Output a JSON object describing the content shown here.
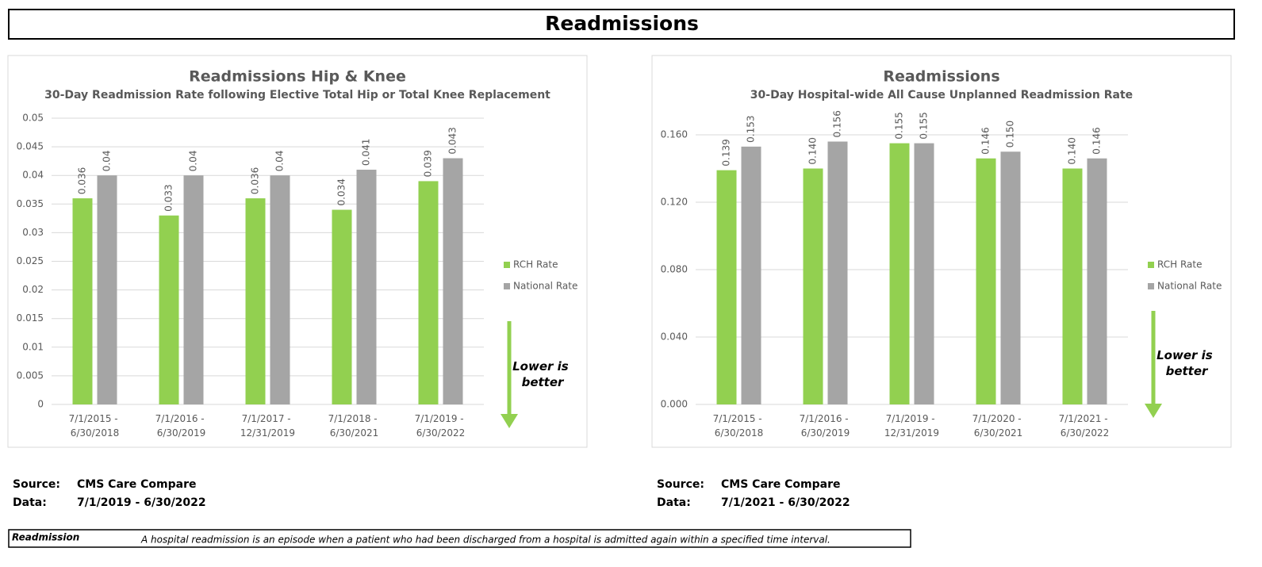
{
  "header": {
    "title": "Readmissions"
  },
  "chart_data": [
    {
      "type": "bar",
      "title": "Readmissions Hip & Knee",
      "subtitle": "30-Day Readmission Rate following Elective Total Hip or Total Knee Replacement",
      "categories": [
        "7/1/2015 - 6/30/2018",
        "7/1/2016 - 6/30/2019",
        "7/1/2017 - 12/31/2019",
        "7/1/2018 - 6/30/2021",
        "7/1/2019 - 6/30/2022"
      ],
      "series": [
        {
          "name": "RCH Rate",
          "color": "#92d050",
          "values": [
            0.036,
            0.033,
            0.036,
            0.034,
            0.039
          ]
        },
        {
          "name": "National Rate",
          "color": "#a5a5a5",
          "values": [
            0.04,
            0.04,
            0.04,
            0.041,
            0.043
          ]
        }
      ],
      "ylim": [
        0,
        0.05
      ],
      "yticks": [
        0,
        0.005,
        0.01,
        0.015,
        0.02,
        0.025,
        0.03,
        0.035,
        0.04,
        0.045,
        0.05
      ],
      "grid": true,
      "legend": "right",
      "annotation": "Lower is better"
    },
    {
      "type": "bar",
      "title": "Readmissions",
      "subtitle": "30-Day Hospital-wide All Cause Unplanned Readmission Rate",
      "categories": [
        "7/1/2015 - 6/30/2018",
        "7/1/2016 - 6/30/2019",
        "7/1/2019 - 12/31/2019",
        "7/1/2020 - 6/30/2021",
        "7/1/2021 - 6/30/2022"
      ],
      "series": [
        {
          "name": "RCH Rate",
          "color": "#92d050",
          "values": [
            0.139,
            0.14,
            0.155,
            0.146,
            0.14
          ],
          "value_labels": [
            "0.139",
            "0.140",
            "0.155",
            "0.146",
            "0.140"
          ]
        },
        {
          "name": "National Rate",
          "color": "#a5a5a5",
          "values": [
            0.153,
            0.156,
            0.155,
            0.15,
            0.146
          ],
          "value_labels": [
            "0.153",
            "0.156",
            "0.155",
            "0.150",
            "0.146"
          ]
        }
      ],
      "ylim": [
        0,
        0.16
      ],
      "yticks": [
        {
          "value": 0,
          "label": "0.000"
        },
        {
          "value": 0.04,
          "label": "0.040"
        },
        {
          "value": 0.08,
          "label": "0.080"
        },
        {
          "value": 0.12,
          "label": "0.120"
        },
        {
          "value": 0.16,
          "label": "0.160"
        }
      ],
      "grid": true,
      "legend": "right",
      "annotation": "Lower is better"
    }
  ],
  "sources": [
    {
      "source_label": "Source:",
      "source": "CMS Care Compare",
      "data_label": "Data:",
      "data": "7/1/2019 - 6/30/2022"
    },
    {
      "source_label": "Source:",
      "source": "CMS Care Compare",
      "data_label": "Data:",
      "data": "7/1/2021 - 6/30/2022"
    }
  ],
  "definition": {
    "term": "Readmission",
    "text": "A hospital readmission is an episode when a patient who had been discharged from a hospital is admitted again within a specified time interval."
  }
}
